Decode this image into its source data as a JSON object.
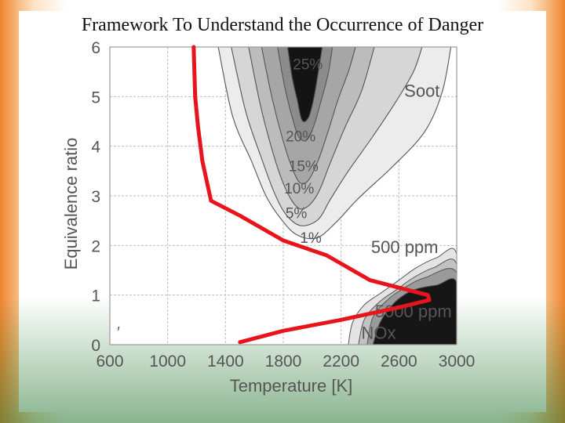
{
  "slide": {
    "title": "Framework To Understand the Occurrence of Danger"
  },
  "chart_data": {
    "type": "contour",
    "xlabel": "Temperature [K]",
    "ylabel": "Equivalence ratio",
    "xlim": [
      600,
      3000
    ],
    "ylim": [
      0,
      6
    ],
    "x_ticks": [
      {
        "value": 600,
        "label": "600"
      },
      {
        "value": 1000,
        "label": "1000"
      },
      {
        "value": 1400,
        "label": "1400"
      },
      {
        "value": 1800,
        "label": "1800"
      },
      {
        "value": 2200,
        "label": "2200"
      },
      {
        "value": 2600,
        "label": "2600"
      },
      {
        "value": 3000,
        "label": "3000"
      }
    ],
    "y_ticks": [
      {
        "value": 0,
        "label": "0"
      },
      {
        "value": 1,
        "label": "1"
      },
      {
        "value": 2,
        "label": "2"
      },
      {
        "value": 3,
        "label": "3"
      },
      {
        "value": 4,
        "label": "4"
      },
      {
        "value": 5,
        "label": "5"
      },
      {
        "value": 6,
        "label": "6"
      }
    ],
    "grid": true,
    "soot": {
      "region_label": "Soot",
      "contour_labels": [
        {
          "text": "25%",
          "x": 1970,
          "y": 5.55
        },
        {
          "text": "20%",
          "x": 1920,
          "y": 4.1
        },
        {
          "text": "15%",
          "x": 1940,
          "y": 3.5
        },
        {
          "text": "10%",
          "x": 1910,
          "y": 3.05
        },
        {
          "text": "5%",
          "x": 1890,
          "y": 2.55
        },
        {
          "text": "1%",
          "x": 1990,
          "y": 2.05
        }
      ],
      "levels": [
        {
          "name": "soot-1pct",
          "color": "#ececec",
          "points": [
            [
              1350,
              6
            ],
            [
              1450,
              4.6
            ],
            [
              1580,
              3.7
            ],
            [
              1680,
              3.0
            ],
            [
              1780,
              2.55
            ],
            [
              1890,
              2.22
            ],
            [
              2030,
              2.15
            ],
            [
              2160,
              2.45
            ],
            [
              2320,
              2.95
            ],
            [
              2560,
              3.6
            ],
            [
              2780,
              4.3
            ],
            [
              2900,
              5.1
            ],
            [
              2960,
              6
            ]
          ]
        },
        {
          "name": "soot-5pct",
          "color": "#d6d6d6",
          "points": [
            [
              1440,
              6
            ],
            [
              1540,
              4.7
            ],
            [
              1650,
              3.75
            ],
            [
              1740,
              3.05
            ],
            [
              1820,
              2.62
            ],
            [
              1920,
              2.4
            ],
            [
              2040,
              2.52
            ],
            [
              2130,
              2.95
            ],
            [
              2250,
              3.5
            ],
            [
              2420,
              4.2
            ],
            [
              2580,
              4.9
            ],
            [
              2700,
              5.5
            ],
            [
              2760,
              6
            ]
          ]
        },
        {
          "name": "soot-10pct",
          "color": "#bcbcbc",
          "points": [
            [
              1560,
              6
            ],
            [
              1640,
              4.85
            ],
            [
              1720,
              3.95
            ],
            [
              1800,
              3.25
            ],
            [
              1880,
              2.82
            ],
            [
              1950,
              2.75
            ],
            [
              2040,
              3.05
            ],
            [
              2130,
              3.7
            ],
            [
              2230,
              4.4
            ],
            [
              2340,
              5.1
            ],
            [
              2430,
              6
            ]
          ]
        },
        {
          "name": "soot-15pct",
          "color": "#a6a6a6",
          "points": [
            [
              1650,
              6
            ],
            [
              1720,
              5.0
            ],
            [
              1790,
              4.2
            ],
            [
              1850,
              3.65
            ],
            [
              1910,
              3.28
            ],
            [
              1970,
              3.3
            ],
            [
              2040,
              3.7
            ],
            [
              2110,
              4.3
            ],
            [
              2180,
              4.95
            ],
            [
              2250,
              5.5
            ],
            [
              2300,
              6
            ]
          ]
        },
        {
          "name": "soot-20pct",
          "color": "#8c8c8c",
          "points": [
            [
              1760,
              6
            ],
            [
              1810,
              5.2
            ],
            [
              1860,
              4.6
            ],
            [
              1905,
              4.2
            ],
            [
              1960,
              4.12
            ],
            [
              2010,
              4.4
            ],
            [
              2060,
              4.9
            ],
            [
              2110,
              5.45
            ],
            [
              2140,
              6
            ]
          ]
        },
        {
          "name": "soot-25pct",
          "color": "#141414",
          "points": [
            [
              1830,
              6
            ],
            [
              1860,
              5.4
            ],
            [
              1895,
              4.95
            ],
            [
              1930,
              4.52
            ],
            [
              1975,
              4.58
            ],
            [
              2010,
              4.95
            ],
            [
              2040,
              5.45
            ],
            [
              2070,
              6
            ]
          ]
        }
      ]
    },
    "nox": {
      "region_label": "NOx",
      "contour_labels": [
        {
          "text": "500 ppm",
          "x": 2640,
          "y": 1.85
        },
        {
          "text": "5000 ppm",
          "x": 2700,
          "y": 0.55
        }
      ],
      "levels": [
        {
          "name": "nox-500ppm",
          "color": "#e4e4e4",
          "points": [
            [
              2250,
              0
            ],
            [
              2280,
              0.45
            ],
            [
              2360,
              0.8
            ],
            [
              2480,
              1.05
            ],
            [
              2600,
              1.3
            ],
            [
              2720,
              1.55
            ],
            [
              2860,
              1.75
            ],
            [
              3000,
              1.82
            ],
            [
              3000,
              0
            ]
          ]
        },
        {
          "name": "nox-1000ppm",
          "color": "#c2c2c2",
          "points": [
            [
              2320,
              0
            ],
            [
              2360,
              0.5
            ],
            [
              2460,
              0.85
            ],
            [
              2580,
              1.1
            ],
            [
              2700,
              1.35
            ],
            [
              2840,
              1.55
            ],
            [
              3000,
              1.62
            ],
            [
              3000,
              0
            ]
          ]
        },
        {
          "name": "nox-2000ppm",
          "color": "#9a9a9a",
          "points": [
            [
              2380,
              0
            ],
            [
              2420,
              0.55
            ],
            [
              2520,
              0.9
            ],
            [
              2640,
              1.15
            ],
            [
              2780,
              1.35
            ],
            [
              3000,
              1.45
            ],
            [
              3000,
              0
            ]
          ]
        },
        {
          "name": "nox-5000ppm",
          "color": "#161616",
          "points": [
            [
              2420,
              0
            ],
            [
              2470,
              0.45
            ],
            [
              2570,
              0.85
            ],
            [
              2700,
              1.1
            ],
            [
              2860,
              1.2
            ],
            [
              3000,
              1.25
            ],
            [
              3000,
              0
            ]
          ]
        }
      ]
    },
    "overlay_path": {
      "color": "#e8141c",
      "points": [
        [
          1180,
          6
        ],
        [
          1190,
          5.0
        ],
        [
          1210,
          4.4
        ],
        [
          1240,
          3.7
        ],
        [
          1300,
          2.9
        ],
        [
          1500,
          2.6
        ],
        [
          1800,
          2.1
        ],
        [
          2100,
          1.8
        ],
        [
          2400,
          1.3
        ],
        [
          2800,
          1.0
        ],
        [
          2810,
          0.9
        ],
        [
          2600,
          0.75
        ],
        [
          2200,
          0.5
        ],
        [
          1800,
          0.28
        ],
        [
          1500,
          0.05
        ]
      ]
    },
    "stray_mark": {
      "text": "′",
      "x": 660,
      "y": 0.15
    }
  }
}
